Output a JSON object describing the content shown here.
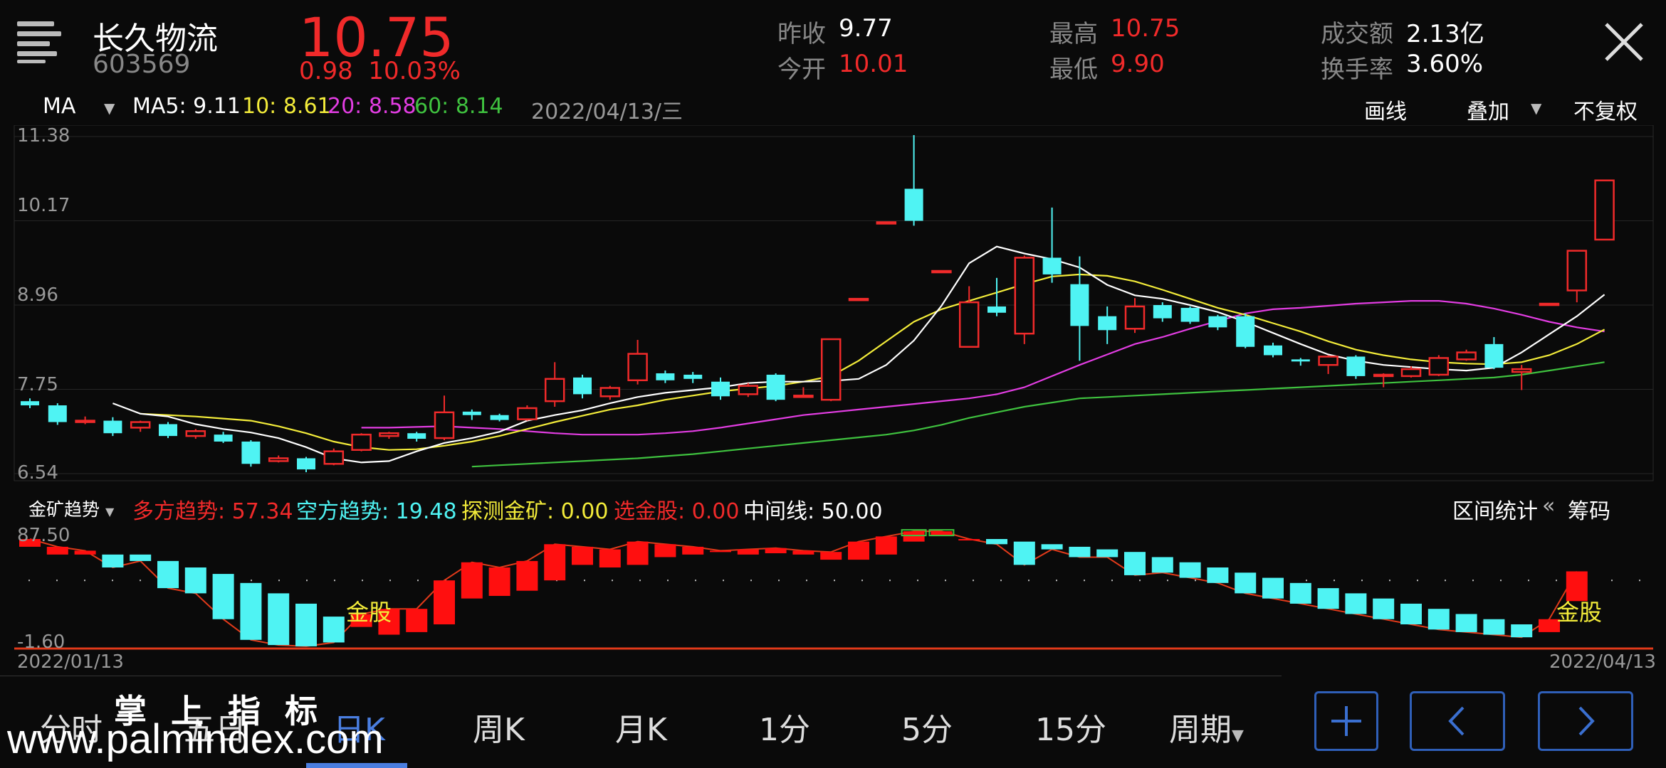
{
  "header": {
    "stock_name": "长久物流",
    "stock_code": "603569",
    "price": "10.75",
    "change": "0.98",
    "change_pct": "10.03%",
    "stats": {
      "prev_close_label": "昨收",
      "prev_close": "9.77",
      "open_label": "今开",
      "open": "10.01",
      "high_label": "最高",
      "high": "10.75",
      "low_label": "最低",
      "low": "9.90",
      "turnover_amount_label": "成交额",
      "turnover_amount": "2.13亿",
      "turnover_rate_label": "换手率",
      "turnover_rate": "3.60%"
    }
  },
  "ma_bar": {
    "indicator": "MA",
    "ma5": "MA5: 9.11",
    "ma10": "10: 8.61",
    "ma20": "20: 8.58",
    "ma60": "60: 8.14",
    "date": "2022/04/13/三",
    "draw_label": "画线",
    "overlay_label": "叠加",
    "adjust_label": "不复权"
  },
  "indicator_bar": {
    "name": "金矿趋势",
    "long_trend": "多方趋势: 57.34",
    "short_trend": "空方趋势: 19.48",
    "detect": "探测金矿: 0.00",
    "pick": "选金股: 0.00",
    "midline": "中间线: 50.00",
    "range_stats": "区间统计",
    "chips": "筹码"
  },
  "dates": {
    "start": "2022/01/13",
    "end": "2022/04/13"
  },
  "tabs": [
    "分时",
    "五日",
    "日K",
    "周K",
    "月K",
    "1分",
    "5分",
    "15分",
    "周期"
  ],
  "active_tab": "日K",
  "watermark": {
    "line1": "掌上指标",
    "line2": "www.palmindex.com"
  },
  "colors": {
    "up": "#f02a2a",
    "down": "#4ff3f3",
    "ma5": "#ffffff",
    "ma10": "#f3ec3a",
    "ma20": "#e33de3",
    "ma60": "#3fc23f",
    "accent": "#2f5fb8"
  },
  "chart_data": [
    {
      "type": "candlestick",
      "ylim": [
        6.54,
        11.38
      ],
      "yticks": [
        "11.38",
        "10.17",
        "8.96",
        "7.75",
        "6.54"
      ],
      "candles": [
        [
          7.58,
          7.52,
          7.62,
          7.48
        ],
        [
          7.52,
          7.28,
          7.55,
          7.24
        ],
        [
          7.28,
          7.3,
          7.36,
          7.25
        ],
        [
          7.3,
          7.12,
          7.35,
          7.08
        ],
        [
          7.2,
          7.28,
          7.3,
          7.14
        ],
        [
          7.25,
          7.08,
          7.28,
          7.05
        ],
        [
          7.08,
          7.15,
          7.18,
          7.04
        ],
        [
          7.1,
          7.0,
          7.14,
          6.98
        ],
        [
          7.0,
          6.68,
          7.02,
          6.64
        ],
        [
          6.72,
          6.76,
          6.8,
          6.7
        ],
        [
          6.76,
          6.6,
          6.78,
          6.56
        ],
        [
          6.68,
          6.86,
          6.9,
          6.66
        ],
        [
          6.88,
          7.1,
          7.12,
          6.86
        ],
        [
          7.08,
          7.12,
          7.14,
          7.04
        ],
        [
          7.12,
          7.04,
          7.14,
          7.0
        ],
        [
          7.05,
          7.42,
          7.66,
          7.02
        ],
        [
          7.43,
          7.38,
          7.46,
          7.31
        ],
        [
          7.38,
          7.31,
          7.4,
          7.29
        ],
        [
          7.32,
          7.48,
          7.52,
          7.3
        ],
        [
          7.58,
          7.9,
          8.14,
          7.5
        ],
        [
          7.92,
          7.68,
          7.96,
          7.62
        ],
        [
          7.65,
          7.77,
          7.8,
          7.6
        ],
        [
          7.88,
          8.26,
          8.46,
          7.82
        ],
        [
          7.98,
          7.88,
          8.02,
          7.84
        ],
        [
          7.96,
          7.9,
          8.0,
          7.84
        ],
        [
          7.86,
          7.65,
          7.92,
          7.6
        ],
        [
          7.68,
          7.8,
          7.84,
          7.64
        ],
        [
          7.96,
          7.6,
          7.98,
          7.58
        ],
        [
          7.66,
          7.66,
          7.78,
          7.64
        ],
        [
          7.6,
          8.47,
          8.48,
          7.58
        ],
        [
          9.05,
          9.05,
          9.05,
          9.05
        ],
        [
          10.15,
          10.15,
          10.15,
          10.15
        ],
        [
          10.63,
          10.17,
          11.4,
          10.1
        ],
        [
          9.45,
          9.45,
          9.45,
          9.45
        ],
        [
          8.36,
          9.0,
          9.23,
          8.36
        ],
        [
          8.94,
          8.85,
          9.35,
          8.8
        ],
        [
          8.55,
          9.64,
          9.67,
          8.4
        ],
        [
          9.64,
          9.4,
          10.36,
          9.28
        ],
        [
          9.26,
          8.66,
          9.66,
          8.16
        ],
        [
          8.8,
          8.6,
          8.94,
          8.4
        ],
        [
          8.62,
          8.94,
          9.06,
          8.56
        ],
        [
          8.96,
          8.77,
          9.0,
          8.72
        ],
        [
          8.92,
          8.72,
          8.94,
          8.69
        ],
        [
          8.8,
          8.64,
          8.82,
          8.6
        ],
        [
          8.8,
          8.36,
          8.84,
          8.34
        ],
        [
          8.38,
          8.24,
          8.42,
          8.21
        ],
        [
          8.18,
          8.15,
          8.2,
          8.09
        ],
        [
          8.1,
          8.22,
          8.24,
          7.97
        ],
        [
          8.22,
          7.94,
          8.24,
          7.9
        ],
        [
          7.96,
          7.96,
          7.98,
          7.78
        ],
        [
          7.94,
          8.04,
          8.08,
          7.92
        ],
        [
          7.96,
          8.2,
          8.24,
          7.94
        ],
        [
          8.18,
          8.28,
          8.32,
          8.16
        ],
        [
          8.4,
          8.06,
          8.5,
          8.04
        ],
        [
          8.0,
          8.04,
          8.1,
          7.74
        ],
        [
          8.98,
          8.98,
          8.98,
          8.98
        ],
        [
          9.17,
          9.74,
          9.74,
          9.0
        ],
        [
          9.9,
          10.75,
          10.75,
          9.9
        ]
      ],
      "ma5": [
        7.55,
        7.4,
        7.36,
        7.25,
        7.18,
        7.13,
        7.05,
        6.92,
        6.76,
        6.7,
        6.72,
        6.86,
        6.98,
        7.05,
        7.14,
        7.3,
        7.38,
        7.45,
        7.55,
        7.64,
        7.7,
        7.74,
        7.78,
        7.84,
        7.86,
        7.86,
        7.87,
        7.9,
        8.1,
        8.45,
        8.95,
        9.56,
        9.8,
        9.7,
        9.62,
        9.5,
        9.25,
        9.1,
        9.05,
        8.96,
        8.86,
        8.72,
        8.56,
        8.4,
        8.25,
        8.16,
        8.1,
        8.07,
        8.04,
        8.02,
        8.06,
        8.28,
        8.54,
        8.8,
        9.11
      ],
      "ma10": [
        7.4,
        7.38,
        7.36,
        7.33,
        7.3,
        7.22,
        7.12,
        7.0,
        6.92,
        6.88,
        6.89,
        6.94,
        7.0,
        7.08,
        7.18,
        7.28,
        7.37,
        7.46,
        7.52,
        7.6,
        7.66,
        7.72,
        7.76,
        7.8,
        7.86,
        7.94,
        8.16,
        8.44,
        8.72,
        8.9,
        9.02,
        9.14,
        9.26,
        9.37,
        9.4,
        9.38,
        9.3,
        9.18,
        9.05,
        8.92,
        8.82,
        8.7,
        8.58,
        8.44,
        8.32,
        8.24,
        8.18,
        8.14,
        8.12,
        8.11,
        8.14,
        8.24,
        8.4,
        8.61
      ],
      "ma20": [
        7.2,
        7.2,
        7.21,
        7.22,
        7.2,
        7.18,
        7.15,
        7.12,
        7.1,
        7.1,
        7.1,
        7.12,
        7.15,
        7.2,
        7.26,
        7.32,
        7.38,
        7.42,
        7.46,
        7.5,
        7.54,
        7.58,
        7.62,
        7.68,
        7.78,
        7.94,
        8.1,
        8.25,
        8.4,
        8.5,
        8.62,
        8.73,
        8.84,
        8.9,
        8.92,
        8.95,
        8.98,
        9.0,
        9.02,
        9.02,
        8.98,
        8.91,
        8.82,
        8.72,
        8.64,
        8.58
      ],
      "ma60": [
        6.64,
        6.66,
        6.68,
        6.7,
        6.72,
        6.74,
        6.76,
        6.79,
        6.82,
        6.86,
        6.9,
        6.94,
        6.98,
        7.02,
        7.06,
        7.1,
        7.16,
        7.24,
        7.34,
        7.42,
        7.5,
        7.56,
        7.62,
        7.64,
        7.66,
        7.68,
        7.7,
        7.72,
        7.74,
        7.76,
        7.78,
        7.8,
        7.82,
        7.84,
        7.86,
        7.88,
        7.9,
        7.92,
        7.96,
        8.02,
        8.08,
        8.14
      ]
    },
    {
      "type": "bar",
      "ylim": [
        -1.6,
        87.5
      ],
      "yticks": [
        "87.50",
        "-1.60"
      ],
      "annotations": [
        "金股",
        "金股"
      ],
      "values": [
        [
          76,
          82
        ],
        [
          70,
          76
        ],
        [
          70,
          73
        ],
        [
          70,
          60
        ],
        [
          70,
          65
        ],
        [
          65,
          44
        ],
        [
          60,
          40
        ],
        [
          55,
          20
        ],
        [
          48,
          4
        ],
        [
          40,
          0
        ],
        [
          32,
          -1
        ],
        [
          22,
          2
        ],
        [
          14,
          24
        ],
        [
          8,
          28
        ],
        [
          10,
          28
        ],
        [
          16,
          50
        ],
        [
          36,
          64
        ],
        [
          38,
          60
        ],
        [
          42,
          65
        ],
        [
          50,
          78
        ],
        [
          62,
          76
        ],
        [
          60,
          74
        ],
        [
          62,
          80
        ],
        [
          68,
          78
        ],
        [
          70,
          76
        ],
        [
          72,
          73
        ],
        [
          70,
          74
        ],
        [
          71,
          75
        ],
        [
          70,
          73
        ],
        [
          66,
          72
        ],
        [
          66,
          80
        ],
        [
          70,
          84
        ],
        [
          80,
          88
        ],
        [
          85,
          88
        ],
        [
          82,
          82
        ],
        [
          82,
          78
        ],
        [
          80,
          62
        ],
        [
          78,
          74
        ],
        [
          76,
          68
        ],
        [
          74,
          68
        ],
        [
          72,
          54
        ],
        [
          68,
          56
        ],
        [
          64,
          52
        ],
        [
          60,
          48
        ],
        [
          56,
          40
        ],
        [
          52,
          36
        ],
        [
          48,
          32
        ],
        [
          44,
          28
        ],
        [
          40,
          24
        ],
        [
          36,
          20
        ],
        [
          32,
          16
        ],
        [
          28,
          12
        ],
        [
          24,
          10
        ],
        [
          20,
          8
        ],
        [
          16,
          6
        ],
        [
          10,
          20
        ],
        [
          34,
          57
        ]
      ]
    }
  ]
}
